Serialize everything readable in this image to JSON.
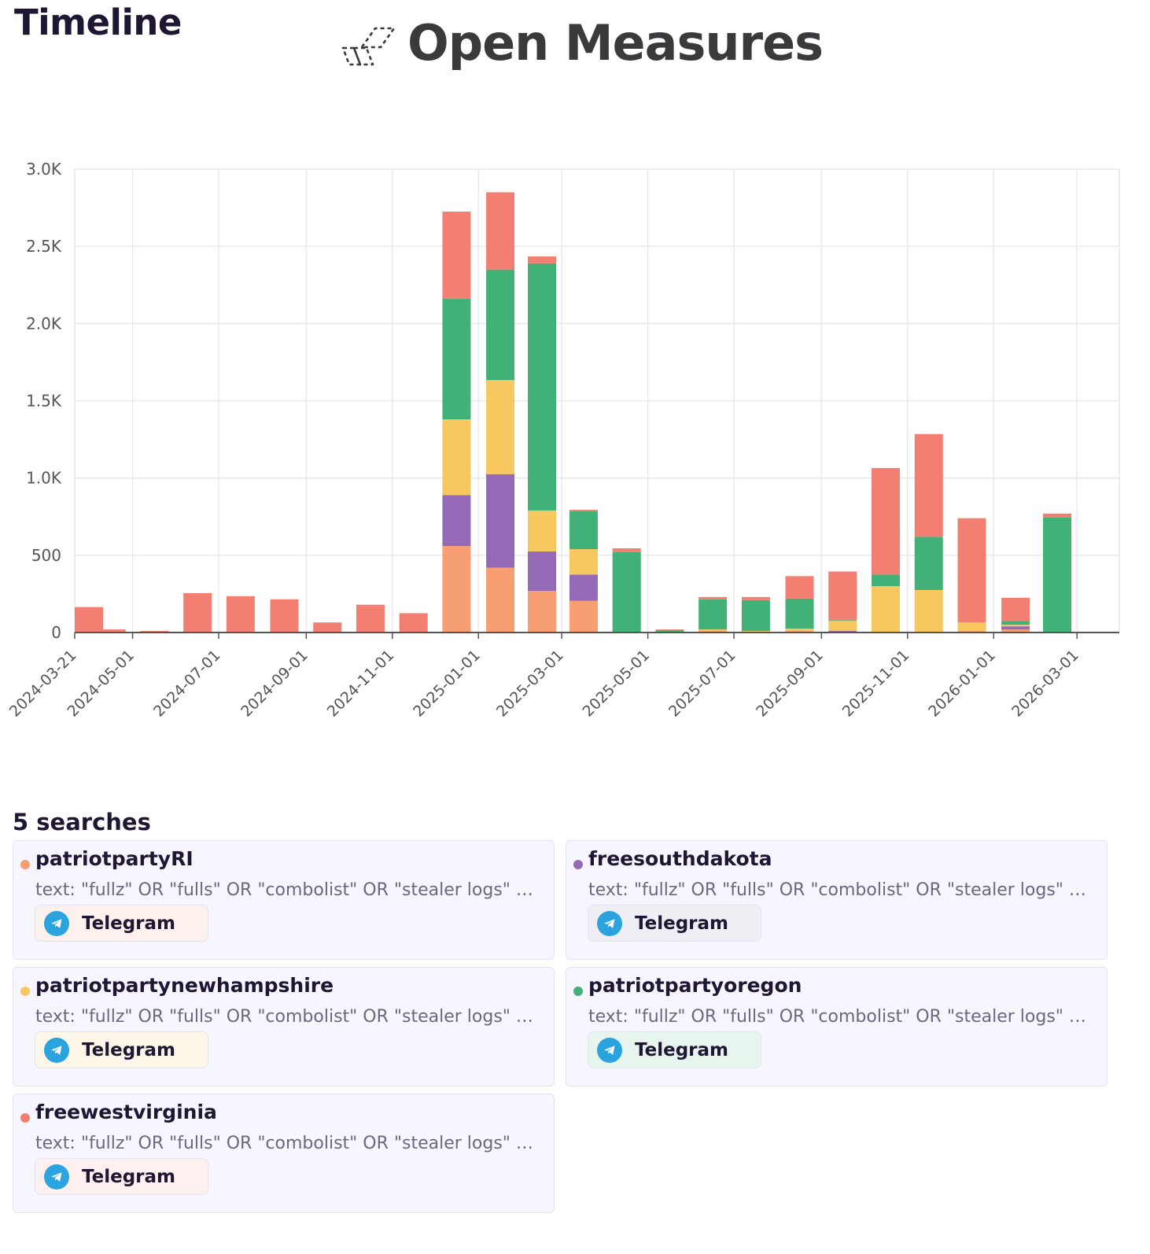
{
  "header": {
    "title": "Timeline",
    "brand_name": "Open Measures"
  },
  "colors": {
    "patriotpartyRI": "#f79e72",
    "freesouthdakota": "#9469b5",
    "patriotpartynewhampshire": "#f7c85f",
    "patriotpartyoregon": "#41b178",
    "freewestvirginia": "#f27f72",
    "grid": "#e9e9ec",
    "axis": "#555555"
  },
  "chart_data": {
    "type": "bar",
    "stacked": true,
    "title": "",
    "xlabel": "",
    "ylabel": "",
    "ylim": [
      0,
      3000
    ],
    "y_ticks": [
      "0",
      "500",
      "1.0K",
      "1.5K",
      "2.0K",
      "2.5K",
      "3.0K"
    ],
    "y_tick_values": [
      0,
      500,
      1000,
      1500,
      2000,
      2500,
      3000
    ],
    "x_tick_labels": [
      "2024-03-21",
      "2024-05-01",
      "2024-07-01",
      "2024-09-01",
      "2024-11-01",
      "2025-01-01",
      "2025-03-01",
      "2025-05-01",
      "2025-07-01",
      "2025-09-01",
      "2025-11-01",
      "2026-01-01",
      "2026-03-01"
    ],
    "grid": true,
    "legend": "none",
    "categories": [
      "2024-03",
      "2024-04",
      "2024-05",
      "2024-06",
      "2024-07",
      "2024-08",
      "2024-09",
      "2024-10",
      "2024-11",
      "2024-12",
      "2025-01",
      "2025-02",
      "2025-03",
      "2025-04",
      "2025-05",
      "2025-06",
      "2025-07",
      "2025-08",
      "2025-09",
      "2025-10",
      "2025-11",
      "2025-12",
      "2026-01",
      "2026-02",
      "2026-03"
    ],
    "series": [
      {
        "name": "patriotpartyRI",
        "values": [
          0,
          0,
          0,
          0,
          0,
          0,
          0,
          0,
          0,
          560,
          420,
          270,
          205,
          0,
          0,
          10,
          5,
          10,
          5,
          5,
          5,
          10,
          20,
          0,
          0
        ]
      },
      {
        "name": "freesouthdakota",
        "values": [
          0,
          0,
          0,
          0,
          0,
          0,
          0,
          0,
          0,
          330,
          605,
          255,
          170,
          0,
          0,
          0,
          0,
          0,
          5,
          0,
          0,
          0,
          20,
          0,
          0
        ]
      },
      {
        "name": "patriotpartynewhampshire",
        "values": [
          0,
          0,
          0,
          0,
          0,
          0,
          0,
          0,
          0,
          490,
          610,
          265,
          165,
          0,
          5,
          10,
          5,
          15,
          65,
          295,
          270,
          55,
          10,
          0,
          0
        ]
      },
      {
        "name": "patriotpartyoregon",
        "values": [
          0,
          0,
          0,
          0,
          0,
          0,
          0,
          0,
          0,
          780,
          715,
          1600,
          245,
          520,
          10,
          195,
          200,
          195,
          5,
          75,
          345,
          0,
          25,
          745,
          0
        ]
      },
      {
        "name": "freewestvirginia",
        "values": [
          165,
          20,
          10,
          255,
          235,
          215,
          65,
          180,
          125,
          565,
          500,
          45,
          10,
          25,
          5,
          15,
          20,
          145,
          315,
          690,
          665,
          675,
          150,
          25,
          0
        ]
      }
    ]
  },
  "searches": {
    "title": "5 searches",
    "items": [
      {
        "name": "patriotpartyRI",
        "query": "text: \"fullz\" OR \"fulls\" OR \"combolist\" OR \"stealer logs\" OR \"stealerlogs\"",
        "platform": "Telegram",
        "color": "#f79e72",
        "tint": "#fdf1ee"
      },
      {
        "name": "freesouthdakota",
        "query": "text: \"fullz\" OR \"fulls\" OR \"combolist\" OR \"stealer logs\" OR \"stealerlogs\"",
        "platform": "Telegram",
        "color": "#9469b5",
        "tint": "#f0eef5"
      },
      {
        "name": "patriotpartynewhampshire",
        "query": "text: \"fullz\" OR \"fulls\" OR \"combolist\" OR \"stealer logs\" OR \"stealerlogs\"",
        "platform": "Telegram",
        "color": "#f7c85f",
        "tint": "#fdf7e9"
      },
      {
        "name": "patriotpartyoregon",
        "query": "text: \"fullz\" OR \"fulls\" OR \"combolist\" OR \"stealer logs\" OR \"stealerlogs\"",
        "platform": "Telegram",
        "color": "#41b178",
        "tint": "#e8f5ef"
      },
      {
        "name": "freewestvirginia",
        "query": "text: \"fullz\" OR \"fulls\" OR \"combolist\" OR \"stealer logs\" OR \"stealerlogs\"",
        "platform": "Telegram",
        "color": "#f27f72",
        "tint": "#fdf0ee"
      }
    ]
  }
}
